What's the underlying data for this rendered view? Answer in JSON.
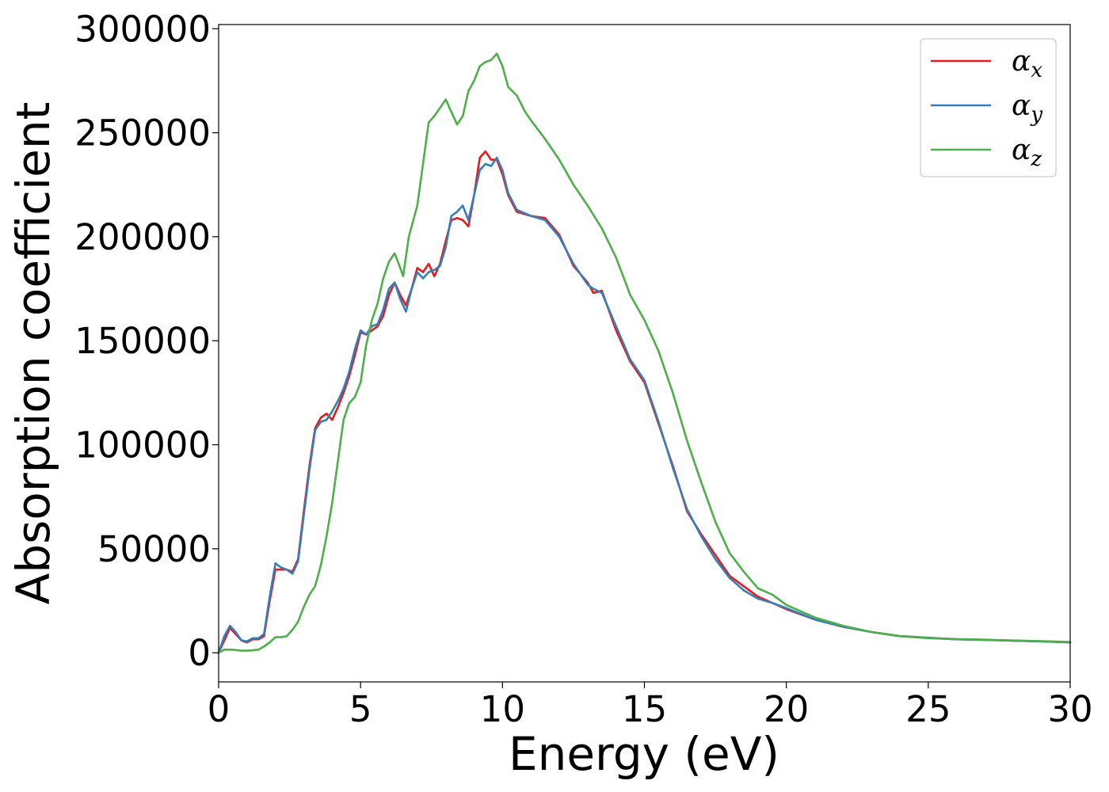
{
  "chart_data": {
    "type": "line",
    "title": "",
    "xlabel": "Energy (eV)",
    "ylabel": "Absorption coefficient",
    "xlim": [
      0,
      30
    ],
    "ylim": [
      -14000,
      302000
    ],
    "xticks": [
      0,
      5,
      10,
      15,
      20,
      25,
      30
    ],
    "yticks": [
      0,
      50000,
      100000,
      150000,
      200000,
      250000,
      300000
    ],
    "xtick_labels": [
      "0",
      "5",
      "10",
      "15",
      "20",
      "25",
      "30"
    ],
    "ytick_labels": [
      "0",
      "50000",
      "100000",
      "150000",
      "200000",
      "250000",
      "300000"
    ],
    "grid": false,
    "legend_position": "top-right",
    "series": [
      {
        "name": "αx",
        "symbol": "α",
        "subscript": "x",
        "color": "#e41a1c",
        "points": [
          [
            0,
            0
          ],
          [
            0.2,
            6000
          ],
          [
            0.4,
            12000
          ],
          [
            0.6,
            9000
          ],
          [
            0.8,
            6000
          ],
          [
            1.0,
            5000
          ],
          [
            1.2,
            6500
          ],
          [
            1.4,
            6500
          ],
          [
            1.6,
            8000
          ],
          [
            1.8,
            25000
          ],
          [
            2.0,
            40000
          ],
          [
            2.2,
            40000
          ],
          [
            2.4,
            40000
          ],
          [
            2.6,
            39000
          ],
          [
            2.8,
            45000
          ],
          [
            3.0,
            68000
          ],
          [
            3.2,
            90000
          ],
          [
            3.4,
            108000
          ],
          [
            3.6,
            113000
          ],
          [
            3.8,
            115000
          ],
          [
            4.0,
            112000
          ],
          [
            4.2,
            118000
          ],
          [
            4.4,
            125000
          ],
          [
            4.6,
            133000
          ],
          [
            4.8,
            143000
          ],
          [
            5.0,
            154000
          ],
          [
            5.2,
            153000
          ],
          [
            5.4,
            155000
          ],
          [
            5.6,
            157000
          ],
          [
            5.8,
            162000
          ],
          [
            6.0,
            172000
          ],
          [
            6.2,
            178000
          ],
          [
            6.4,
            172000
          ],
          [
            6.6,
            167000
          ],
          [
            6.8,
            175000
          ],
          [
            7.0,
            185000
          ],
          [
            7.2,
            183000
          ],
          [
            7.4,
            187000
          ],
          [
            7.6,
            181000
          ],
          [
            7.8,
            187000
          ],
          [
            8.0,
            198000
          ],
          [
            8.2,
            208000
          ],
          [
            8.4,
            209000
          ],
          [
            8.6,
            208000
          ],
          [
            8.8,
            205000
          ],
          [
            9.0,
            220000
          ],
          [
            9.2,
            238000
          ],
          [
            9.4,
            241000
          ],
          [
            9.6,
            237000
          ],
          [
            9.8,
            237000
          ],
          [
            10.0,
            230000
          ],
          [
            10.2,
            220000
          ],
          [
            10.5,
            212000
          ],
          [
            11.0,
            210000
          ],
          [
            11.5,
            209000
          ],
          [
            12.0,
            201000
          ],
          [
            12.5,
            186000
          ],
          [
            13.0,
            178000
          ],
          [
            13.2,
            173000
          ],
          [
            13.5,
            174000
          ],
          [
            14.0,
            155000
          ],
          [
            14.5,
            140000
          ],
          [
            15.0,
            130000
          ],
          [
            15.5,
            110000
          ],
          [
            16.0,
            90000
          ],
          [
            16.5,
            68000
          ],
          [
            17.0,
            57000
          ],
          [
            17.5,
            47000
          ],
          [
            18.0,
            37000
          ],
          [
            18.5,
            32000
          ],
          [
            19.0,
            27000
          ],
          [
            19.5,
            24000
          ],
          [
            20.0,
            21000
          ],
          [
            21.0,
            16000
          ],
          [
            22.0,
            12500
          ],
          [
            23.0,
            10000
          ],
          [
            24.0,
            8000
          ],
          [
            25.0,
            7200
          ],
          [
            26.0,
            6500
          ],
          [
            27.0,
            6200
          ],
          [
            28.0,
            5800
          ],
          [
            29.0,
            5500
          ],
          [
            30.0,
            5000
          ]
        ]
      },
      {
        "name": "αy",
        "symbol": "α",
        "subscript": "y",
        "color": "#377eb8",
        "points": [
          [
            0,
            0
          ],
          [
            0.2,
            8000
          ],
          [
            0.4,
            13000
          ],
          [
            0.6,
            10000
          ],
          [
            0.8,
            6000
          ],
          [
            1.0,
            5500
          ],
          [
            1.2,
            7000
          ],
          [
            1.4,
            7000
          ],
          [
            1.6,
            9000
          ],
          [
            1.8,
            27000
          ],
          [
            2.0,
            43000
          ],
          [
            2.2,
            41000
          ],
          [
            2.4,
            40000
          ],
          [
            2.6,
            38000
          ],
          [
            2.8,
            44000
          ],
          [
            3.0,
            66000
          ],
          [
            3.2,
            88000
          ],
          [
            3.4,
            107000
          ],
          [
            3.6,
            111000
          ],
          [
            3.8,
            112000
          ],
          [
            4.0,
            116000
          ],
          [
            4.2,
            121000
          ],
          [
            4.4,
            127000
          ],
          [
            4.6,
            135000
          ],
          [
            4.8,
            146000
          ],
          [
            5.0,
            155000
          ],
          [
            5.2,
            153000
          ],
          [
            5.4,
            157000
          ],
          [
            5.6,
            158000
          ],
          [
            5.8,
            165000
          ],
          [
            6.0,
            175000
          ],
          [
            6.2,
            178000
          ],
          [
            6.4,
            170000
          ],
          [
            6.6,
            164000
          ],
          [
            6.8,
            175000
          ],
          [
            7.0,
            183000
          ],
          [
            7.2,
            180000
          ],
          [
            7.4,
            183000
          ],
          [
            7.6,
            184000
          ],
          [
            7.8,
            186000
          ],
          [
            8.0,
            195000
          ],
          [
            8.2,
            210000
          ],
          [
            8.4,
            212000
          ],
          [
            8.6,
            215000
          ],
          [
            8.8,
            208000
          ],
          [
            9.0,
            220000
          ],
          [
            9.2,
            232000
          ],
          [
            9.4,
            235000
          ],
          [
            9.6,
            234000
          ],
          [
            9.8,
            238000
          ],
          [
            10.0,
            232000
          ],
          [
            10.2,
            221000
          ],
          [
            10.5,
            213000
          ],
          [
            11.0,
            210000
          ],
          [
            11.5,
            208000
          ],
          [
            12.0,
            200000
          ],
          [
            12.5,
            187000
          ],
          [
            13.0,
            177000
          ],
          [
            13.2,
            175000
          ],
          [
            13.5,
            173000
          ],
          [
            14.0,
            157000
          ],
          [
            14.5,
            141000
          ],
          [
            15.0,
            131000
          ],
          [
            15.5,
            111000
          ],
          [
            16.0,
            89000
          ],
          [
            16.5,
            69000
          ],
          [
            17.0,
            56000
          ],
          [
            17.5,
            45000
          ],
          [
            18.0,
            36000
          ],
          [
            18.5,
            30000
          ],
          [
            19.0,
            26000
          ],
          [
            19.5,
            24000
          ],
          [
            20.0,
            21500
          ],
          [
            21.0,
            16000
          ],
          [
            22.0,
            12500
          ],
          [
            23.0,
            10000
          ],
          [
            24.0,
            8000
          ],
          [
            25.0,
            7200
          ],
          [
            26.0,
            6500
          ],
          [
            27.0,
            6200
          ],
          [
            28.0,
            5800
          ],
          [
            29.0,
            5500
          ],
          [
            30.0,
            5000
          ]
        ]
      },
      {
        "name": "αz",
        "symbol": "α",
        "subscript": "z",
        "color": "#4daf4a",
        "points": [
          [
            0,
            0
          ],
          [
            0.2,
            1500
          ],
          [
            0.5,
            1500
          ],
          [
            0.8,
            1000
          ],
          [
            1.0,
            1000
          ],
          [
            1.2,
            1200
          ],
          [
            1.4,
            1500
          ],
          [
            1.6,
            3000
          ],
          [
            1.8,
            5000
          ],
          [
            2.0,
            7500
          ],
          [
            2.2,
            7500
          ],
          [
            2.4,
            8000
          ],
          [
            2.6,
            11000
          ],
          [
            2.8,
            15000
          ],
          [
            3.0,
            22000
          ],
          [
            3.2,
            28000
          ],
          [
            3.4,
            32000
          ],
          [
            3.6,
            42000
          ],
          [
            3.8,
            56000
          ],
          [
            4.0,
            72000
          ],
          [
            4.2,
            92000
          ],
          [
            4.4,
            112000
          ],
          [
            4.6,
            120000
          ],
          [
            4.8,
            123000
          ],
          [
            5.0,
            130000
          ],
          [
            5.2,
            148000
          ],
          [
            5.4,
            160000
          ],
          [
            5.6,
            168000
          ],
          [
            5.8,
            180000
          ],
          [
            6.0,
            188000
          ],
          [
            6.2,
            192000
          ],
          [
            6.4,
            185000
          ],
          [
            6.5,
            181000
          ],
          [
            6.7,
            200000
          ],
          [
            7.0,
            215000
          ],
          [
            7.2,
            235000
          ],
          [
            7.4,
            255000
          ],
          [
            7.6,
            258000
          ],
          [
            7.8,
            262000
          ],
          [
            8.0,
            266000
          ],
          [
            8.2,
            260000
          ],
          [
            8.4,
            254000
          ],
          [
            8.6,
            258000
          ],
          [
            8.8,
            270000
          ],
          [
            9.0,
            275000
          ],
          [
            9.2,
            282000
          ],
          [
            9.4,
            284000
          ],
          [
            9.6,
            285000
          ],
          [
            9.8,
            288000
          ],
          [
            10.0,
            282000
          ],
          [
            10.2,
            272000
          ],
          [
            10.5,
            268000
          ],
          [
            10.8,
            260000
          ],
          [
            11.0,
            256000
          ],
          [
            11.5,
            247000
          ],
          [
            12.0,
            237000
          ],
          [
            12.5,
            225000
          ],
          [
            13.0,
            215000
          ],
          [
            13.5,
            204000
          ],
          [
            14.0,
            190000
          ],
          [
            14.5,
            172000
          ],
          [
            15.0,
            160000
          ],
          [
            15.5,
            145000
          ],
          [
            16.0,
            125000
          ],
          [
            16.5,
            102000
          ],
          [
            17.0,
            82000
          ],
          [
            17.5,
            63000
          ],
          [
            18.0,
            48000
          ],
          [
            18.5,
            39000
          ],
          [
            19.0,
            31000
          ],
          [
            19.5,
            28000
          ],
          [
            20.0,
            23000
          ],
          [
            21.0,
            17000
          ],
          [
            22.0,
            13000
          ],
          [
            23.0,
            10000
          ],
          [
            24.0,
            8000
          ],
          [
            25.0,
            7000
          ],
          [
            26.0,
            6600
          ],
          [
            27.0,
            6300
          ],
          [
            28.0,
            5900
          ],
          [
            29.0,
            5600
          ],
          [
            30.0,
            5200
          ]
        ]
      }
    ]
  }
}
